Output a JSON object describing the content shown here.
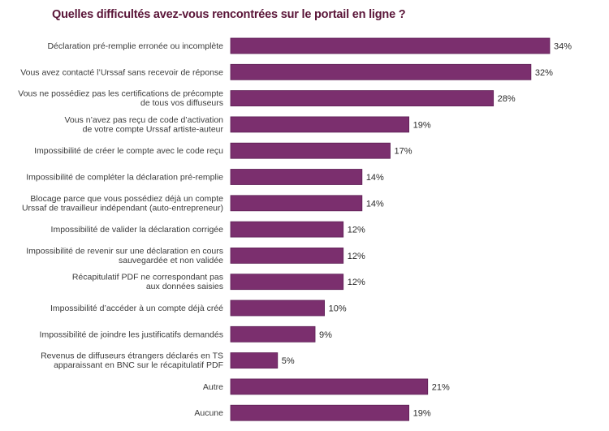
{
  "chart_data": {
    "type": "bar",
    "orientation": "horizontal",
    "title": "Quelles difficultés avez-vous rencontrées sur le portail en ligne ?",
    "xlabel": "",
    "ylabel": "",
    "unit": "%",
    "xlim": [
      0,
      34
    ],
    "grid": false,
    "legend": "none",
    "bar_color": "#7b2f6e",
    "title_color": "#5a1538",
    "categories": [
      [
        "Déclaration pré-remplie erronée ou incomplète"
      ],
      [
        "Vous avez contacté l’Urssaf sans recevoir de réponse"
      ],
      [
        "Vous ne possédiez pas les certifications de précompte",
        "de tous vos diffuseurs"
      ],
      [
        "Vous n’avez pas reçu de code d’activation",
        "de votre compte Urssaf artiste-auteur"
      ],
      [
        "Impossibilité de créer le compte avec le code reçu"
      ],
      [
        "Impossibilité de compléter la déclaration pré-remplie"
      ],
      [
        "Blocage parce que vous possédiez déjà un compte",
        "Urssaf de travailleur indépendant (auto-entrepreneur)"
      ],
      [
        "Impossibilité de valider la déclaration corrigée"
      ],
      [
        "Impossibilité de revenir sur une déclaration en cours",
        "sauvegardée et non validée"
      ],
      [
        "Récapitulatif PDF ne correspondant pas",
        "aux données saisies"
      ],
      [
        "Impossibilité d’accéder à un compte déjà créé"
      ],
      [
        "Impossibilité de joindre les justificatifs demandés"
      ],
      [
        "Revenus de diffuseurs étrangers déclarés en TS",
        "apparaissant en BNC sur le récapitulatif PDF"
      ],
      [
        "Autre"
      ],
      [
        "Aucune"
      ]
    ],
    "values": [
      34,
      32,
      28,
      19,
      17,
      14,
      14,
      12,
      12,
      12,
      10,
      9,
      5,
      21,
      19
    ],
    "value_labels": [
      "34%",
      "32%",
      "28%",
      "19%",
      "17%",
      "14%",
      "14%",
      "12%",
      "12%",
      "12%",
      "10%",
      "9%",
      "5%",
      "21%",
      "19%"
    ]
  }
}
